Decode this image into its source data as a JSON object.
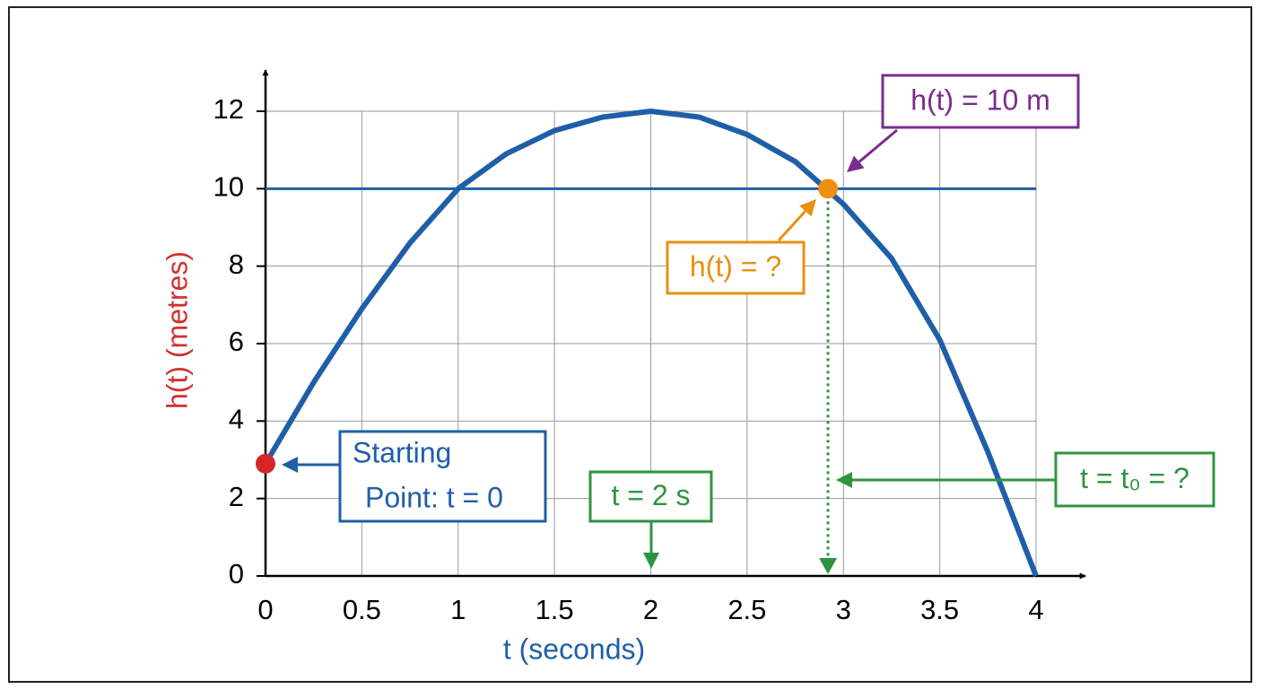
{
  "chart_data": {
    "type": "line",
    "xlabel": "t (seconds)",
    "ylabel": "h(t) (metres)",
    "xlabel_color": "#1f5fa8",
    "ylabel_color": "#d0312d",
    "xlim": [
      0,
      4
    ],
    "ylim": [
      0,
      12
    ],
    "xticks": [
      0,
      0.5,
      1,
      1.5,
      2,
      2.5,
      3,
      3.5,
      4
    ],
    "yticks": [
      0,
      2,
      4,
      6,
      8,
      10,
      12
    ],
    "grid": true,
    "series": [
      {
        "color": "#1f5fa8",
        "x": [
          0,
          0.25,
          0.5,
          0.75,
          1,
          1.25,
          1.5,
          1.75,
          2,
          2.25,
          2.5,
          2.75,
          3,
          3.25,
          3.5,
          3.75,
          4
        ],
        "values": [
          2.9,
          5.0,
          6.9,
          8.6,
          10.0,
          10.9,
          11.5,
          11.85,
          12,
          11.85,
          11.4,
          10.7,
          9.6,
          8.2,
          6.1,
          3.2,
          0
        ]
      }
    ],
    "reference_line": {
      "value": 10,
      "color": "#1f5fa8"
    },
    "points": [
      {
        "x": 0,
        "y": 2.9,
        "color": "#d62728"
      },
      {
        "x": 2.92,
        "y": 10,
        "color": "#f0900f"
      }
    ],
    "drop_line_color": "#2e9440",
    "annotations": [
      {
        "lines": [
          "h(t) = 10 m"
        ],
        "color": "#7b2d8e"
      },
      {
        "lines": [
          "h(t) = ?"
        ],
        "color": "#e8900f"
      },
      {
        "lines": [
          "Starting",
          "Point: t = 0"
        ],
        "color": "#1f5fa8"
      },
      {
        "lines": [
          "t = 2 s"
        ],
        "color": "#2e9440"
      },
      {
        "lines": [
          "t = t₀ = ?"
        ],
        "color": "#2e9440"
      }
    ]
  }
}
